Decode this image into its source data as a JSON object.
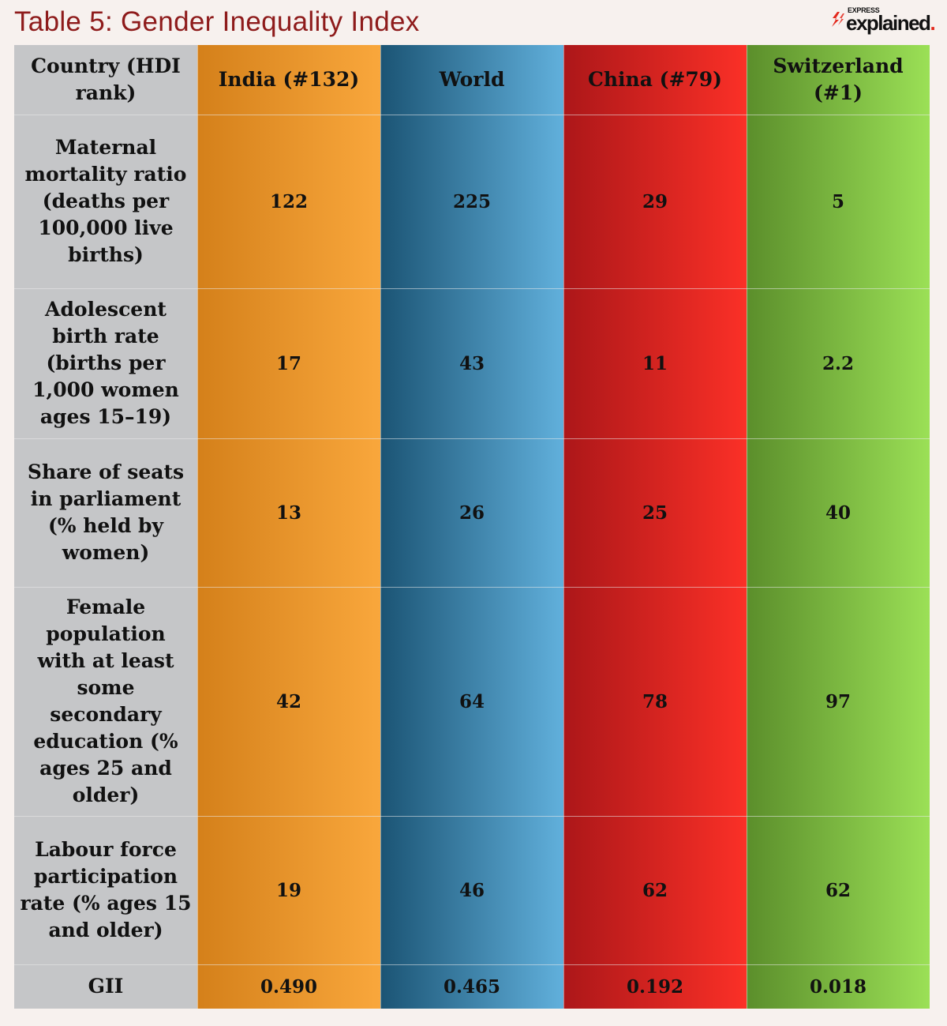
{
  "title": "Table 5: Gender Inequality Index",
  "logo": {
    "small": "EXPRESS",
    "big": "explained",
    "dot": "."
  },
  "colors": {
    "india": "#f39a2e",
    "world": "#3b85b0",
    "china": "#e0241f",
    "switzerland": "#7fbf45",
    "label_column": "#c5c6c8",
    "title": "#8e1b1b"
  },
  "chart_data": {
    "type": "table",
    "title": "Table 5: Gender Inequality Index",
    "header_label": "Country (HDI rank)",
    "columns": [
      "India (#132)",
      "World",
      "China (#79)",
      "Switzerland (#1)"
    ],
    "rows": [
      {
        "label": "Maternal mortality ratio (deaths per 100,000 live births)",
        "values": [
          "122",
          "225",
          "29",
          "5"
        ]
      },
      {
        "label": "Adolescent birth rate (births per 1,000 women ages 15–19)",
        "values": [
          "17",
          "43",
          "11",
          "2.2"
        ]
      },
      {
        "label": "Share of seats in parliament (% held by women)",
        "values": [
          "13",
          "26",
          "25",
          "40"
        ]
      },
      {
        "label": "Female population with at least some secondary education (% ages 25 and older)",
        "values": [
          "42",
          "64",
          "78",
          "97"
        ]
      },
      {
        "label": "Labour force participation rate (% ages 15 and older)",
        "values": [
          "19",
          "46",
          "62",
          "62"
        ]
      },
      {
        "label": "GII",
        "values": [
          "0.490",
          "0.465",
          "0.192",
          "0.018"
        ]
      }
    ]
  }
}
